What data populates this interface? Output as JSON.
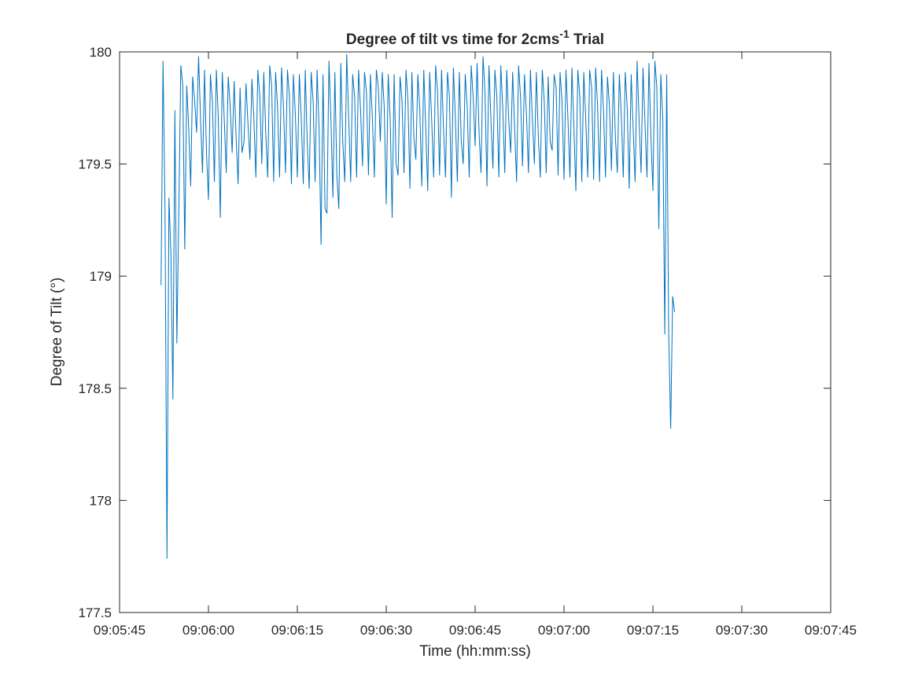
{
  "chart_data": {
    "type": "line",
    "title": {
      "main": "Degree of tilt vs time for 2cms",
      "superscript": "-1",
      "suffix": " Trial"
    },
    "xlabel": "Time (hh:mm:ss)",
    "ylabel": "Degree of Tilt (°)",
    "xlim": [
      "09:05:45",
      "09:07:45"
    ],
    "ylim": [
      177.5,
      180
    ],
    "xticks": [
      "09:05:45",
      "09:06:00",
      "09:06:15",
      "09:06:30",
      "09:06:45",
      "09:07:00",
      "09:07:15",
      "09:07:30",
      "09:07:45"
    ],
    "yticks": [
      "177.5",
      "178",
      "178.5",
      "179",
      "179.5",
      "180"
    ],
    "grid": false,
    "box": true,
    "line_color": "#0072BD",
    "series": [
      {
        "x_start": "09:05:52",
        "x_step_seconds": 1,
        "samples": [
          [
            178.96,
            179.96,
            179.3
          ],
          [
            177.74,
            179.35,
            179.1
          ],
          [
            178.45,
            179.74,
            178.7
          ],
          [
            179.29,
            179.94,
            179.85
          ],
          [
            179.12,
            179.85,
            179.66
          ],
          [
            179.4,
            179.89,
            179.78
          ],
          [
            179.64,
            179.98,
            179.7
          ],
          [
            179.46,
            179.92,
            179.55
          ],
          [
            179.34,
            179.9,
            179.78
          ],
          [
            179.42,
            179.92,
            179.7
          ],
          [
            179.26,
            179.91,
            179.7
          ],
          [
            179.46,
            179.89,
            179.76
          ],
          [
            179.55,
            179.87,
            179.62
          ],
          [
            179.41,
            179.84,
            179.55
          ],
          [
            179.6,
            179.86,
            179.68
          ],
          [
            179.52,
            179.88,
            179.7
          ],
          [
            179.44,
            179.92,
            179.8
          ],
          [
            179.5,
            179.91,
            179.64
          ],
          [
            179.44,
            179.94,
            179.85
          ],
          [
            179.42,
            179.91,
            179.75
          ],
          [
            179.44,
            179.93,
            179.75
          ],
          [
            179.46,
            179.92,
            179.8
          ],
          [
            179.41,
            179.9,
            179.72
          ],
          [
            179.44,
            179.9,
            179.7
          ],
          [
            179.41,
            179.92,
            179.6
          ],
          [
            179.39,
            179.91,
            179.78
          ],
          [
            179.42,
            179.92,
            179.66
          ],
          [
            179.14,
            179.9,
            179.3
          ],
          [
            179.28,
            179.96,
            179.7
          ],
          [
            179.35,
            179.91,
            179.45
          ],
          [
            179.3,
            179.95,
            179.6
          ],
          [
            179.42,
            179.99,
            179.7
          ],
          [
            179.42,
            179.9,
            179.8
          ],
          [
            179.44,
            179.92,
            179.74
          ],
          [
            179.49,
            179.91,
            179.82
          ],
          [
            179.45,
            179.9,
            179.7
          ],
          [
            179.44,
            179.92,
            179.84
          ],
          [
            179.6,
            179.91,
            179.75
          ],
          [
            179.32,
            179.9,
            179.7
          ],
          [
            179.26,
            179.9,
            179.5
          ],
          [
            179.45,
            179.89,
            179.78
          ],
          [
            179.46,
            179.92,
            179.78
          ],
          [
            179.39,
            179.91,
            179.62
          ],
          [
            179.52,
            179.9,
            179.74
          ],
          [
            179.4,
            179.92,
            179.66
          ],
          [
            179.38,
            179.91,
            179.7
          ],
          [
            179.44,
            179.94,
            179.82
          ],
          [
            179.45,
            179.92,
            179.66
          ],
          [
            179.44,
            179.91,
            179.8
          ],
          [
            179.35,
            179.93,
            179.7
          ],
          [
            179.42,
            179.91,
            179.6
          ],
          [
            179.5,
            179.9,
            179.75
          ],
          [
            179.44,
            179.94,
            179.8
          ],
          [
            179.58,
            179.95,
            179.64
          ],
          [
            179.46,
            179.98,
            179.82
          ],
          [
            179.4,
            179.94,
            179.7
          ],
          [
            179.48,
            179.92,
            179.8
          ],
          [
            179.44,
            179.94,
            179.75
          ],
          [
            179.46,
            179.92,
            179.7
          ],
          [
            179.55,
            179.91,
            179.66
          ],
          [
            179.42,
            179.94,
            179.8
          ],
          [
            179.49,
            179.9,
            179.72
          ],
          [
            179.46,
            179.92,
            179.7
          ],
          [
            179.5,
            179.91,
            179.62
          ],
          [
            179.44,
            179.92,
            179.78
          ],
          [
            179.46,
            179.89,
            179.6
          ],
          [
            179.56,
            179.9,
            179.84
          ],
          [
            179.45,
            179.91,
            179.78
          ],
          [
            179.43,
            179.92,
            179.7
          ],
          [
            179.44,
            179.93,
            179.66
          ],
          [
            179.38,
            179.92,
            179.8
          ],
          [
            179.42,
            179.91,
            179.7
          ],
          [
            179.44,
            179.92,
            179.84
          ],
          [
            179.43,
            179.93,
            179.76
          ],
          [
            179.42,
            179.92,
            179.74
          ],
          [
            179.44,
            179.89,
            179.76
          ],
          [
            179.47,
            179.91,
            179.62
          ],
          [
            179.46,
            179.9,
            179.72
          ],
          [
            179.44,
            179.91,
            179.75
          ],
          [
            179.39,
            179.9,
            179.66
          ],
          [
            179.42,
            179.96,
            179.7
          ],
          [
            179.46,
            179.93,
            179.68
          ],
          [
            179.44,
            179.95,
            179.62
          ],
          [
            179.38,
            179.96,
            179.84
          ],
          [
            179.21,
            179.9,
            179.7
          ],
          [
            178.74,
            179.9,
            178.74
          ],
          [
            178.32,
            178.91,
            178.84
          ]
        ]
      }
    ]
  }
}
